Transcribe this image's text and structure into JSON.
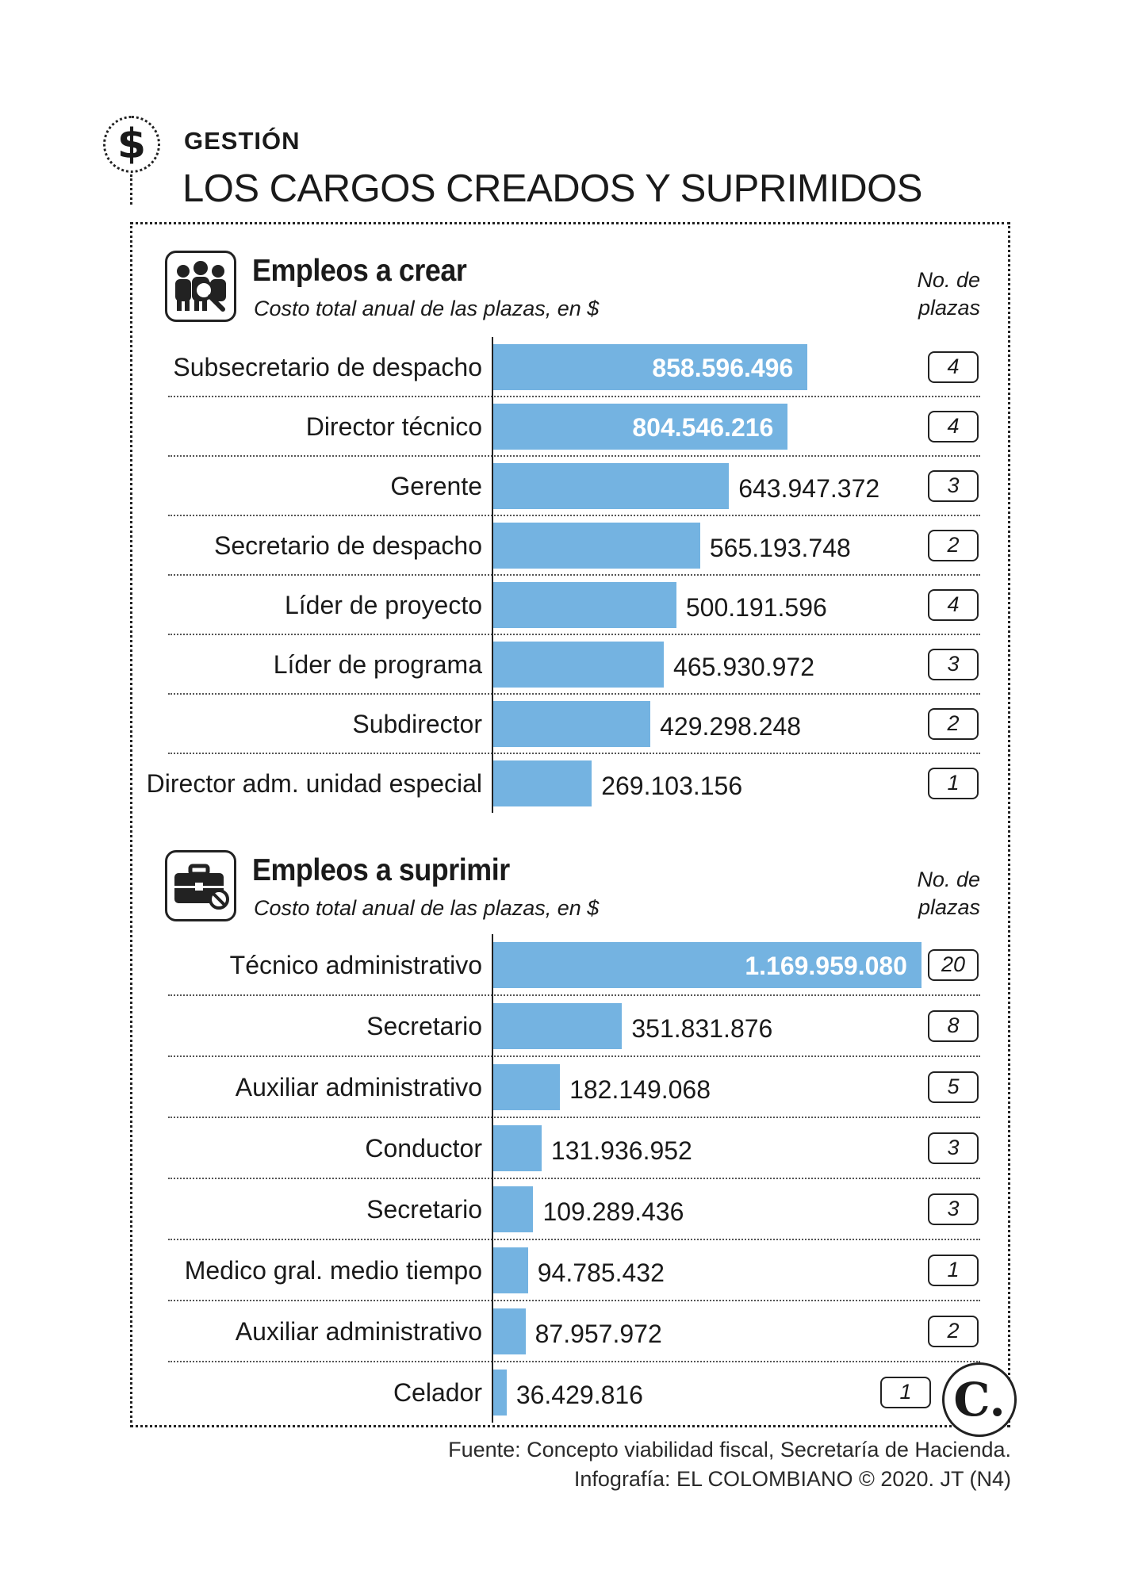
{
  "header": {
    "icon": "dollar-icon",
    "kicker": "GESTIÓN",
    "title": "LOS CARGOS CREADOS Y SUPRIMIDOS"
  },
  "colors": {
    "bar": "#74b3e1",
    "value_inside": "#ffffff",
    "text": "#1a1a1a"
  },
  "chart_data": [
    {
      "type": "bar",
      "orientation": "horizontal",
      "icon": "workers-icon",
      "title": "Empleos a crear",
      "subtitle": "Costo total anual de las plazas, en $",
      "count_header": "No. de plazas",
      "xlim": [
        0,
        1170000000
      ],
      "items": [
        {
          "label": "Subsecretario de despacho",
          "value": 858596496,
          "value_text": "858.596.496",
          "count": "4",
          "inside": true
        },
        {
          "label": "Director técnico",
          "value": 804546216,
          "value_text": "804.546.216",
          "count": "4",
          "inside": true
        },
        {
          "label": "Gerente",
          "value": 643947372,
          "value_text": "643.947.372",
          "count": "3",
          "inside": false
        },
        {
          "label": "Secretario de despacho",
          "value": 565193748,
          "value_text": "565.193.748",
          "count": "2",
          "inside": false
        },
        {
          "label": "Líder de proyecto",
          "value": 500191596,
          "value_text": "500.191.596",
          "count": "4",
          "inside": false
        },
        {
          "label": "Líder de programa",
          "value": 465930972,
          "value_text": "465.930.972",
          "count": "3",
          "inside": false
        },
        {
          "label": "Subdirector",
          "value": 429298248,
          "value_text": "429.298.248",
          "count": "2",
          "inside": false
        },
        {
          "label": "Director adm. unidad especial",
          "value": 269103156,
          "value_text": "269.103.156",
          "count": "1",
          "inside": false
        }
      ]
    },
    {
      "type": "bar",
      "orientation": "horizontal",
      "icon": "briefcase-icon",
      "title": "Empleos a suprimir",
      "subtitle": "Costo total anual de las plazas, en $",
      "count_header": "No. de plazas",
      "xlim": [
        0,
        1170000000
      ],
      "items": [
        {
          "label": "Técnico administrativo",
          "value": 1169959080,
          "value_text": "1.169.959.080",
          "count": "20",
          "inside": true
        },
        {
          "label": "Secretario",
          "value": 351831876,
          "value_text": "351.831.876",
          "count": "8",
          "inside": false
        },
        {
          "label": "Auxiliar administrativo",
          "value": 182149068,
          "value_text": "182.149.068",
          "count": "5",
          "inside": false
        },
        {
          "label": "Conductor",
          "value": 131936952,
          "value_text": "131.936.952",
          "count": "3",
          "inside": false
        },
        {
          "label": "Secretario",
          "value": 109289436,
          "value_text": "109.289.436",
          "count": "3",
          "inside": false
        },
        {
          "label": "Medico gral. medio tiempo",
          "value": 94785432,
          "value_text": "94.785.432",
          "count": "1",
          "inside": false
        },
        {
          "label": "Auxiliar administrativo",
          "value": 87957972,
          "value_text": "87.957.972",
          "count": "2",
          "inside": false
        },
        {
          "label": "Celador",
          "value": 36429816,
          "value_text": "36.429.816",
          "count": "1",
          "inside": false
        }
      ]
    }
  ],
  "footer": {
    "source": "Fuente: Concepto viabilidad fiscal, Secretaría de Hacienda.",
    "credit": "Infografía: EL COLOMBIANO © 2020. JT (N4)",
    "logo_icon": "el-colombiano-logo-icon",
    "logo_text": "C."
  }
}
